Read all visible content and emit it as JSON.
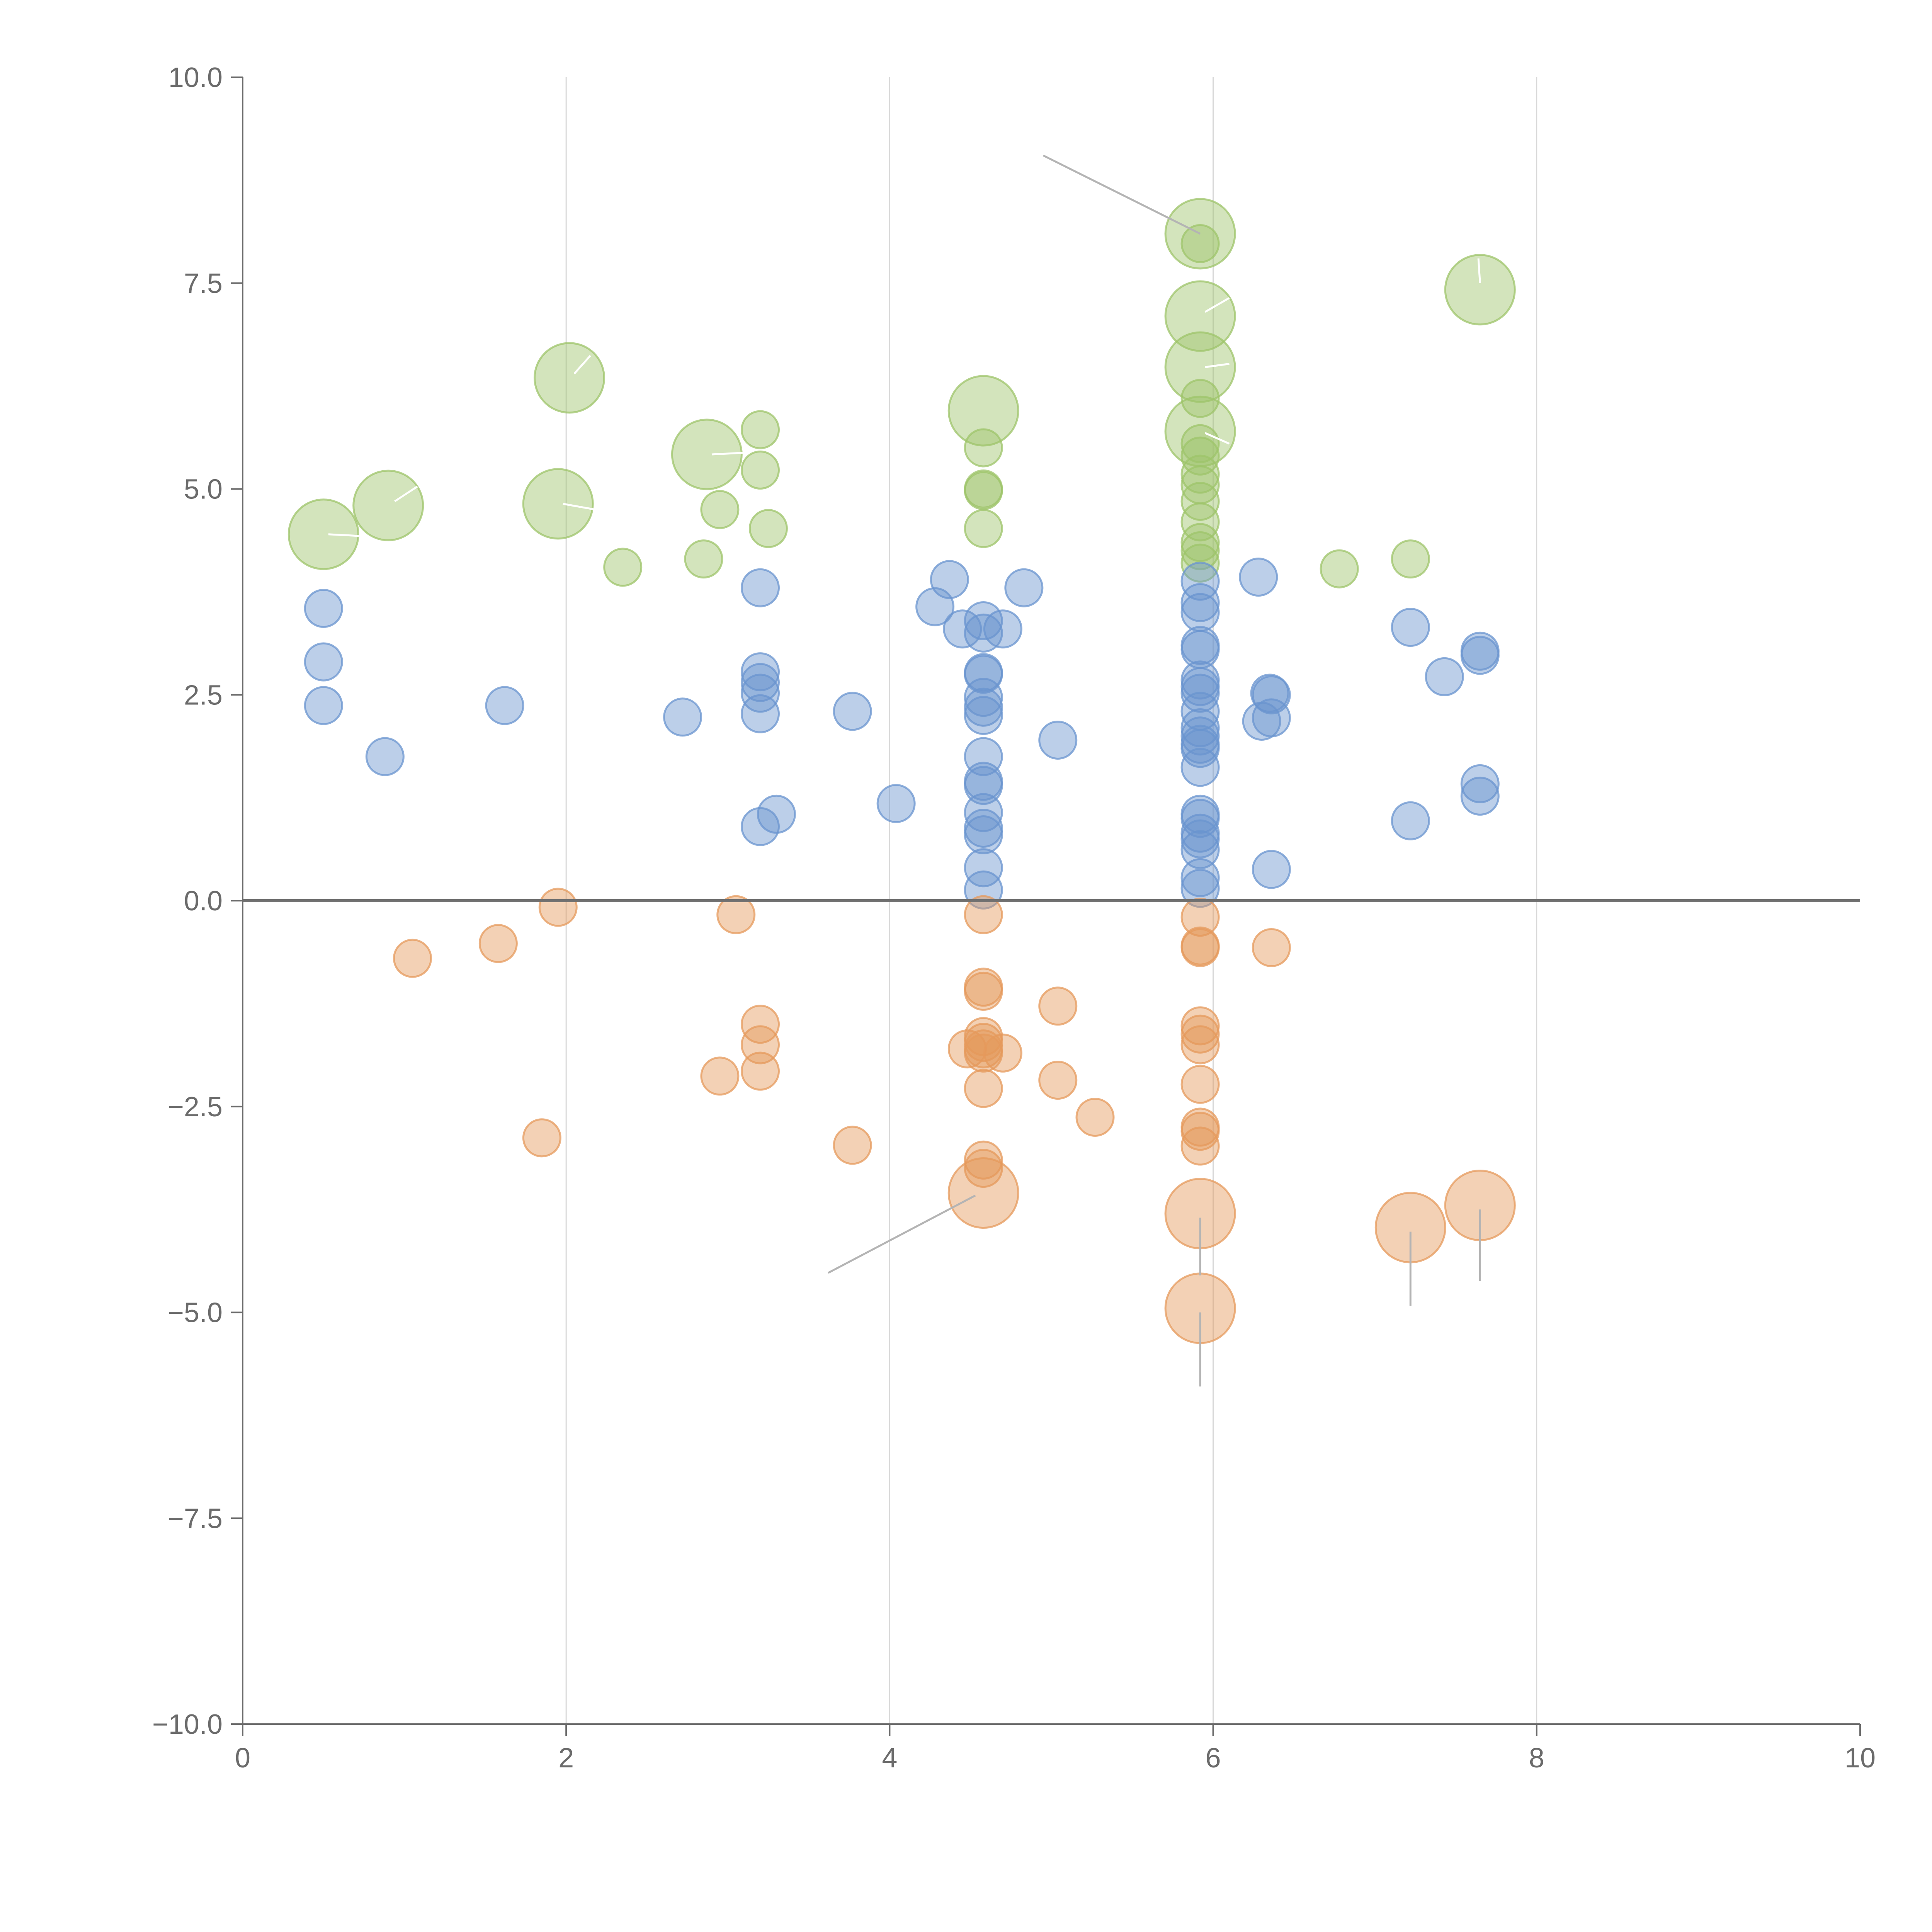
{
  "chart_data": {
    "type": "scatter",
    "title": "",
    "xlabel": "",
    "ylabel": "",
    "xlim": [
      0,
      10
    ],
    "ylim": [
      -10,
      10
    ],
    "x_ticks": [
      0,
      2,
      4,
      6,
      8,
      10
    ],
    "y_ticks": [
      10,
      7.5,
      5,
      2.5,
      0,
      -2.5,
      -5,
      -7.5,
      -10
    ],
    "x_tick_labels": [
      "0",
      "2",
      "4",
      "6",
      "8",
      "10"
    ],
    "y_tick_labels": [
      "10.0",
      "7.5",
      "5.0",
      "2.5",
      "0.0",
      "−2.5",
      "−5.0",
      "−7.5",
      "−10.0"
    ],
    "vertical_gridlines": [
      2,
      4,
      6,
      8
    ],
    "zero_line": 0,
    "colors": {
      "green": "#9dc46a",
      "blue": "#6a94cf",
      "orange": "#e59a5c",
      "leader_dark": "#b4b4b4",
      "leader_light": "#ffffff"
    },
    "series": [
      {
        "name": "green",
        "color": "#9dc46a",
        "points": [
          [
            0.5,
            4.45,
            2
          ],
          [
            0.9,
            4.8,
            2
          ],
          [
            1.95,
            4.82,
            2
          ],
          [
            2.02,
            6.35,
            2
          ],
          [
            2.35,
            4.05,
            1
          ],
          [
            2.85,
            4.15,
            1
          ],
          [
            2.87,
            5.42,
            2
          ],
          [
            2.95,
            4.75,
            1
          ],
          [
            3.2,
            5.72,
            1
          ],
          [
            3.2,
            5.23,
            1
          ],
          [
            3.25,
            4.52,
            1
          ],
          [
            4.58,
            5.95,
            2
          ],
          [
            4.58,
            5.5,
            1
          ],
          [
            4.58,
            5.0,
            1
          ],
          [
            4.58,
            4.98,
            1
          ],
          [
            4.58,
            4.52,
            1
          ],
          [
            5.92,
            8.1,
            2
          ],
          [
            5.92,
            7.98,
            1
          ],
          [
            5.92,
            7.1,
            2
          ],
          [
            5.92,
            6.48,
            2
          ],
          [
            5.92,
            6.1,
            1
          ],
          [
            5.92,
            5.7,
            2
          ],
          [
            5.92,
            5.55,
            1
          ],
          [
            5.92,
            5.4,
            1
          ],
          [
            5.92,
            5.18,
            1
          ],
          [
            5.92,
            5.05,
            1
          ],
          [
            5.92,
            4.85,
            1
          ],
          [
            5.92,
            4.6,
            1
          ],
          [
            5.92,
            4.35,
            1
          ],
          [
            5.92,
            4.25,
            1
          ],
          [
            5.92,
            4.1,
            1
          ],
          [
            6.78,
            4.03,
            1
          ],
          [
            7.22,
            4.15,
            1
          ],
          [
            7.65,
            7.42,
            2
          ]
        ]
      },
      {
        "name": "blue",
        "color": "#6a94cf",
        "points": [
          [
            0.5,
            3.55,
            1
          ],
          [
            0.5,
            2.9,
            1
          ],
          [
            0.5,
            2.37,
            1
          ],
          [
            0.88,
            1.75,
            1
          ],
          [
            1.62,
            2.37,
            1
          ],
          [
            2.72,
            2.23,
            1
          ],
          [
            3.2,
            3.8,
            1
          ],
          [
            3.2,
            2.78,
            1
          ],
          [
            3.2,
            2.65,
            1
          ],
          [
            3.2,
            2.52,
            1
          ],
          [
            3.2,
            2.27,
            1
          ],
          [
            3.2,
            0.9,
            1
          ],
          [
            3.3,
            1.05,
            1
          ],
          [
            3.77,
            2.3,
            1
          ],
          [
            4.04,
            1.18,
            1
          ],
          [
            4.28,
            3.57,
            1
          ],
          [
            4.37,
            3.9,
            1
          ],
          [
            4.45,
            3.3,
            1
          ],
          [
            4.58,
            3.4,
            1
          ],
          [
            4.58,
            3.25,
            1
          ],
          [
            4.58,
            2.77,
            1
          ],
          [
            4.58,
            2.75,
            1
          ],
          [
            4.58,
            2.47,
            1
          ],
          [
            4.58,
            2.35,
            1
          ],
          [
            4.58,
            2.25,
            1
          ],
          [
            4.58,
            1.75,
            1
          ],
          [
            4.58,
            1.45,
            1
          ],
          [
            4.58,
            1.4,
            1
          ],
          [
            4.58,
            1.07,
            1
          ],
          [
            4.58,
            0.88,
            1
          ],
          [
            4.58,
            0.8,
            1
          ],
          [
            4.58,
            0.4,
            1
          ],
          [
            4.58,
            0.13,
            1
          ],
          [
            4.7,
            3.3,
            1
          ],
          [
            4.83,
            3.8,
            1
          ],
          [
            5.04,
            1.95,
            1
          ],
          [
            5.92,
            3.88,
            1
          ],
          [
            5.92,
            3.62,
            1
          ],
          [
            5.92,
            3.5,
            1
          ],
          [
            5.92,
            3.1,
            1
          ],
          [
            5.92,
            3.05,
            1
          ],
          [
            5.92,
            2.68,
            1
          ],
          [
            5.92,
            2.6,
            1
          ],
          [
            5.92,
            2.52,
            1
          ],
          [
            5.92,
            2.3,
            1
          ],
          [
            5.92,
            2.1,
            1
          ],
          [
            5.92,
            2.0,
            1
          ],
          [
            5.92,
            1.9,
            1
          ],
          [
            5.92,
            1.85,
            1
          ],
          [
            5.92,
            1.62,
            1
          ],
          [
            5.92,
            1.05,
            1
          ],
          [
            5.92,
            1.0,
            1
          ],
          [
            5.92,
            0.82,
            1
          ],
          [
            5.92,
            0.75,
            1
          ],
          [
            5.92,
            0.62,
            1
          ],
          [
            5.92,
            0.28,
            1
          ],
          [
            5.92,
            0.15,
            1
          ],
          [
            6.28,
            3.93,
            1
          ],
          [
            6.3,
            2.18,
            1
          ],
          [
            6.35,
            2.52,
            1
          ],
          [
            6.36,
            2.5,
            1
          ],
          [
            6.36,
            2.22,
            1
          ],
          [
            6.36,
            0.38,
            1
          ],
          [
            7.22,
            3.32,
            1
          ],
          [
            7.22,
            0.97,
            1
          ],
          [
            7.43,
            2.72,
            1
          ],
          [
            7.65,
            3.03,
            1
          ],
          [
            7.65,
            2.98,
            1
          ],
          [
            7.65,
            1.42,
            1
          ],
          [
            7.65,
            1.27,
            1
          ]
        ]
      },
      {
        "name": "orange",
        "color": "#e59a5c",
        "points": [
          [
            1.05,
            -0.7,
            1
          ],
          [
            1.58,
            -0.52,
            1
          ],
          [
            1.85,
            -2.88,
            1
          ],
          [
            1.95,
            -0.08,
            1
          ],
          [
            2.95,
            -2.13,
            1
          ],
          [
            3.05,
            -0.17,
            1
          ],
          [
            3.2,
            -1.5,
            1
          ],
          [
            3.2,
            -1.75,
            1
          ],
          [
            3.2,
            -2.07,
            1
          ],
          [
            3.77,
            -2.97,
            1
          ],
          [
            4.48,
            -1.8,
            1
          ],
          [
            4.58,
            -0.17,
            1
          ],
          [
            4.58,
            -1.05,
            1
          ],
          [
            4.58,
            -1.1,
            1
          ],
          [
            4.58,
            -1.65,
            1
          ],
          [
            4.58,
            -1.72,
            1
          ],
          [
            4.58,
            -1.8,
            1
          ],
          [
            4.58,
            -1.85,
            1
          ],
          [
            4.58,
            -2.28,
            1
          ],
          [
            4.58,
            -3.15,
            1
          ],
          [
            4.58,
            -3.25,
            1
          ],
          [
            4.58,
            -3.55,
            2
          ],
          [
            4.7,
            -1.85,
            1
          ],
          [
            5.04,
            -1.28,
            1
          ],
          [
            5.04,
            -2.18,
            1
          ],
          [
            5.27,
            -2.63,
            1
          ],
          [
            5.92,
            -0.2,
            1
          ],
          [
            5.92,
            -0.55,
            1
          ],
          [
            5.92,
            -0.57,
            1
          ],
          [
            5.92,
            -1.52,
            1
          ],
          [
            5.92,
            -1.62,
            1
          ],
          [
            5.92,
            -1.75,
            1
          ],
          [
            5.92,
            -2.23,
            1
          ],
          [
            5.92,
            -2.75,
            1
          ],
          [
            5.92,
            -2.8,
            1
          ],
          [
            5.92,
            -2.98,
            1
          ],
          [
            5.92,
            -3.8,
            2
          ],
          [
            5.92,
            -4.95,
            2
          ],
          [
            6.36,
            -0.57,
            1
          ],
          [
            7.22,
            -3.97,
            2
          ],
          [
            7.65,
            -3.7,
            2
          ]
        ]
      }
    ],
    "leader_lines": [
      {
        "color": "leader_dark",
        "x1": 4.95,
        "y1": 9.05,
        "x2": 5.92,
        "y2": 8.1
      },
      {
        "color": "leader_dark",
        "x1": 3.62,
        "y1": -4.52,
        "x2": 4.53,
        "y2": -3.58
      },
      {
        "color": "leader_dark",
        "x1": 5.92,
        "y1": -3.85,
        "x2": 5.92,
        "y2": -4.55
      },
      {
        "color": "leader_dark",
        "x1": 5.92,
        "y1": -5.0,
        "x2": 5.92,
        "y2": -5.9
      },
      {
        "color": "leader_dark",
        "x1": 7.22,
        "y1": -4.02,
        "x2": 7.22,
        "y2": -4.92
      },
      {
        "color": "leader_dark",
        "x1": 7.65,
        "y1": -3.75,
        "x2": 7.65,
        "y2": -4.62
      },
      {
        "color": "leader_light",
        "x1": 0.53,
        "y1": 4.45,
        "x2": 0.72,
        "y2": 4.43
      },
      {
        "color": "leader_light",
        "x1": 0.94,
        "y1": 4.85,
        "x2": 1.08,
        "y2": 5.03
      },
      {
        "color": "leader_light",
        "x1": 1.98,
        "y1": 4.82,
        "x2": 2.18,
        "y2": 4.75
      },
      {
        "color": "leader_light",
        "x1": 2.05,
        "y1": 6.4,
        "x2": 2.15,
        "y2": 6.62
      },
      {
        "color": "leader_light",
        "x1": 2.9,
        "y1": 5.42,
        "x2": 3.1,
        "y2": 5.44
      },
      {
        "color": "leader_light",
        "x1": 5.95,
        "y1": 7.15,
        "x2": 6.1,
        "y2": 7.32
      },
      {
        "color": "leader_light",
        "x1": 5.95,
        "y1": 6.48,
        "x2": 6.1,
        "y2": 6.52
      },
      {
        "color": "leader_light",
        "x1": 5.95,
        "y1": 5.68,
        "x2": 6.1,
        "y2": 5.55
      },
      {
        "color": "leader_light",
        "x1": 7.65,
        "y1": 7.5,
        "x2": 7.64,
        "y2": 7.8
      }
    ]
  }
}
